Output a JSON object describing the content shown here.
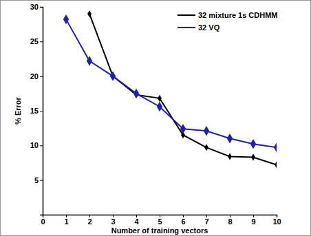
{
  "chart_data": {
    "type": "line",
    "x_label": "Number of training vectors",
    "y_label": "% Error",
    "x": [
      1,
      2,
      3,
      4,
      5,
      6,
      7,
      8,
      9,
      10
    ],
    "series": [
      {
        "name": "32 mixture 1s CDHMM",
        "color": "#000000",
        "marker": "diamond",
        "line_style": "solid",
        "values": [
          null,
          29,
          20,
          17.3,
          16.8,
          11.5,
          9.7,
          8.4,
          8.3,
          7.2
        ]
      },
      {
        "name": "32 VQ",
        "color": "#1f1fb4",
        "marker": "diamond",
        "line_style": "solid",
        "values": [
          28.2,
          22.2,
          20,
          17.5,
          15.6,
          12.4,
          12.1,
          11,
          10.2,
          9.7
        ]
      }
    ],
    "xlim": [
      0,
      10
    ],
    "xticks": [
      0,
      1,
      2,
      3,
      4,
      5,
      6,
      7,
      8,
      9,
      10
    ],
    "ylim": [
      0,
      30
    ],
    "yticks": [
      5,
      10,
      15,
      20,
      25,
      30
    ],
    "grid": false,
    "legend": "top-right"
  }
}
